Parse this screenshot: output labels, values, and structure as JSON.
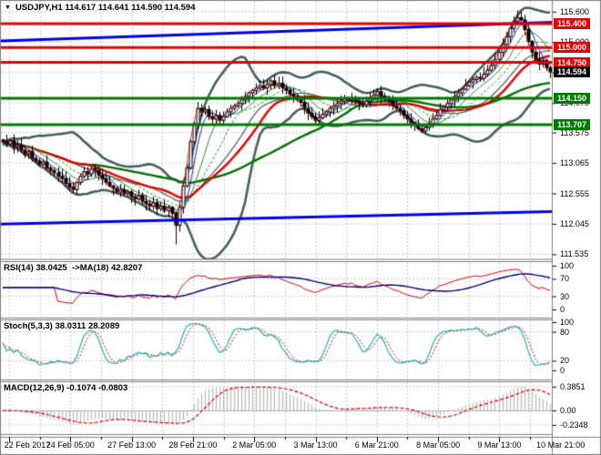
{
  "header": {
    "dropdown_icon": "▼",
    "title": "USDJPY,H1 114.617 114.641 114.590 114.594"
  },
  "colors": {
    "background": "#ffffff",
    "grid": "#c9c9c9",
    "border": "#7f7f7f",
    "candle": "#000000",
    "bollinger": "#44605d",
    "ma_red": "#e60000",
    "ma_green": "#007000",
    "ma_thin_blue": "#2020bb",
    "ma_thin_green": "#2e8b2e",
    "resistance": "#e60000",
    "support": "#007a00",
    "channel": "#0000ee",
    "rsi_line": "#e00000",
    "rsi_ma": "#000080",
    "stoch_k": "#20b2aa",
    "stoch_d": "#e60000",
    "macd_hist": "#b9b9b9",
    "macd_signal": "#e60000",
    "badge_red": "#e60000",
    "badge_green": "#007a00",
    "badge_black": "#000000",
    "badge_text": "#ffffff"
  },
  "price_axis": {
    "ticks": [
      {
        "price": 115.6,
        "label": "115.600"
      },
      {
        "price": 115.09,
        "label": "115.090"
      },
      {
        "price": 114.58,
        "label": "114.580"
      },
      {
        "price": 114.07,
        "label": "114.070"
      },
      {
        "price": 113.575,
        "label": "113.575"
      },
      {
        "price": 113.065,
        "label": "113.065"
      },
      {
        "price": 112.555,
        "label": "112.555"
      },
      {
        "price": 112.045,
        "label": "112.045"
      },
      {
        "price": 111.535,
        "label": "111.535"
      }
    ],
    "badges": [
      {
        "price": 115.4,
        "label": "115.400",
        "bg": "#e60000"
      },
      {
        "price": 115.0,
        "label": "115.000",
        "bg": "#e60000"
      },
      {
        "price": 114.75,
        "label": "114.750",
        "bg": "#e60000"
      },
      {
        "price": 114.594,
        "label": "114.594",
        "bg": "#000000"
      },
      {
        "price": 114.15,
        "label": "114.150",
        "bg": "#007a00"
      },
      {
        "price": 113.707,
        "label": "113.707",
        "bg": "#007a00"
      }
    ]
  },
  "panels": {
    "rsi": {
      "title": "RSI(14) 38.0425  ->MA(18) 42.8207",
      "period": 14,
      "ma_period": 18,
      "ticks": [
        {
          "v": 100,
          "t": "100"
        },
        {
          "v": 70,
          "t": "70"
        },
        {
          "v": 30,
          "t": "30"
        },
        {
          "v": 0,
          "t": "0"
        }
      ],
      "levels": [
        70,
        30
      ]
    },
    "stoch": {
      "title": "Stoch(5,3,3) 38.0311 28.2089",
      "k": 5,
      "d": 3,
      "slowing": 3,
      "ticks": [
        {
          "v": 100,
          "t": "100"
        },
        {
          "v": 80,
          "t": "80"
        },
        {
          "v": 20,
          "t": "20"
        },
        {
          "v": 0,
          "t": "0"
        }
      ],
      "levels": [
        80,
        20
      ]
    },
    "macd": {
      "title": "MACD(12,26,9) -0.1074 -0.0803",
      "fast": 12,
      "slow": 26,
      "signal": 9,
      "ticks": [
        {
          "v": 0.3851,
          "t": "0.3851"
        },
        {
          "v": 0,
          "t": "0.00"
        },
        {
          "v": -0.2348,
          "t": "-0.2348"
        }
      ],
      "hist_max": 0.3851,
      "hist_min": -0.2348
    }
  },
  "chart_data": {
    "type": "candlestick",
    "symbol": "USDJPY",
    "timeframe": "H1",
    "last_ohlc": {
      "open": 114.617,
      "high": 114.641,
      "low": 114.59,
      "close": 114.594
    },
    "ylim": [
      111.45,
      115.78
    ],
    "x_labels": [
      "22 Feb 2017",
      "24 Feb 05:00",
      "27 Feb 13:00",
      "28 Feb 21:00",
      "2 Mar 05:00",
      "3 Mar 13:00",
      "6 Mar 21:00",
      "8 Mar 05:00",
      "9 Mar 13:00",
      "10 Mar 21:00"
    ],
    "close": [
      113.42,
      113.38,
      113.44,
      113.33,
      113.36,
      113.28,
      113.22,
      113.26,
      113.14,
      113.1,
      113.04,
      113.08,
      112.98,
      112.94,
      112.9,
      112.84,
      112.8,
      112.72,
      112.66,
      112.62,
      112.74,
      112.84,
      112.92,
      112.88,
      112.97,
      112.94,
      112.86,
      112.8,
      112.74,
      112.68,
      112.64,
      112.58,
      112.62,
      112.55,
      112.58,
      112.5,
      112.46,
      112.52,
      112.42,
      112.38,
      112.34,
      112.4,
      112.3,
      112.34,
      112.26,
      112.32,
      112.22,
      112.02,
      112.32,
      112.68,
      112.98,
      113.42,
      113.72,
      113.98,
      113.92,
      113.96,
      113.84,
      113.8,
      113.86,
      113.78,
      113.84,
      113.92,
      113.98,
      114.02,
      114.06,
      114.12,
      114.18,
      114.24,
      114.28,
      114.32,
      114.36,
      114.32,
      114.38,
      114.44,
      114.36,
      114.4,
      114.32,
      114.28,
      114.22,
      114.18,
      114.12,
      114.08,
      113.98,
      113.9,
      113.84,
      113.78,
      113.82,
      113.88,
      113.92,
      113.98,
      114.02,
      114.06,
      114.1,
      114.14,
      114.12,
      114.16,
      114.1,
      114.06,
      114.04,
      114.1,
      114.16,
      114.2,
      114.26,
      114.18,
      114.14,
      114.1,
      114.02,
      113.98,
      113.94,
      113.86,
      113.8,
      113.74,
      113.7,
      113.64,
      113.6,
      113.66,
      113.72,
      113.8,
      113.86,
      113.96,
      114.0,
      114.06,
      114.12,
      114.18,
      114.24,
      114.3,
      114.36,
      114.42,
      114.46,
      114.5,
      114.48,
      114.55,
      114.62,
      114.7,
      114.8,
      114.92,
      115.05,
      115.18,
      115.32,
      115.44,
      115.5,
      115.46,
      115.3,
      115.1,
      114.92,
      114.8,
      114.72,
      114.78,
      114.66,
      114.59
    ],
    "wick_overrides": [
      {
        "i": 47,
        "low": 111.7
      },
      {
        "i": 140,
        "high": 115.62
      }
    ],
    "levels": {
      "resistance": [
        115.4,
        115.0,
        114.75
      ],
      "support": [
        114.15,
        113.707
      ],
      "channel_upper": [
        115.11,
        115.42
      ],
      "channel_lower": [
        112.04,
        112.25
      ],
      "current_price": 114.594
    },
    "indicators": [
      {
        "name": "RSI",
        "params": [
          14
        ],
        "value": 38.0425,
        "ma_period": 18,
        "ma_value": 42.8207
      },
      {
        "name": "Stochastic",
        "params": [
          5,
          3,
          3
        ],
        "k": 38.0311,
        "d": 28.2089
      },
      {
        "name": "MACD",
        "params": [
          12,
          26,
          9
        ],
        "macd": -0.1074,
        "signal": -0.0803
      }
    ]
  }
}
